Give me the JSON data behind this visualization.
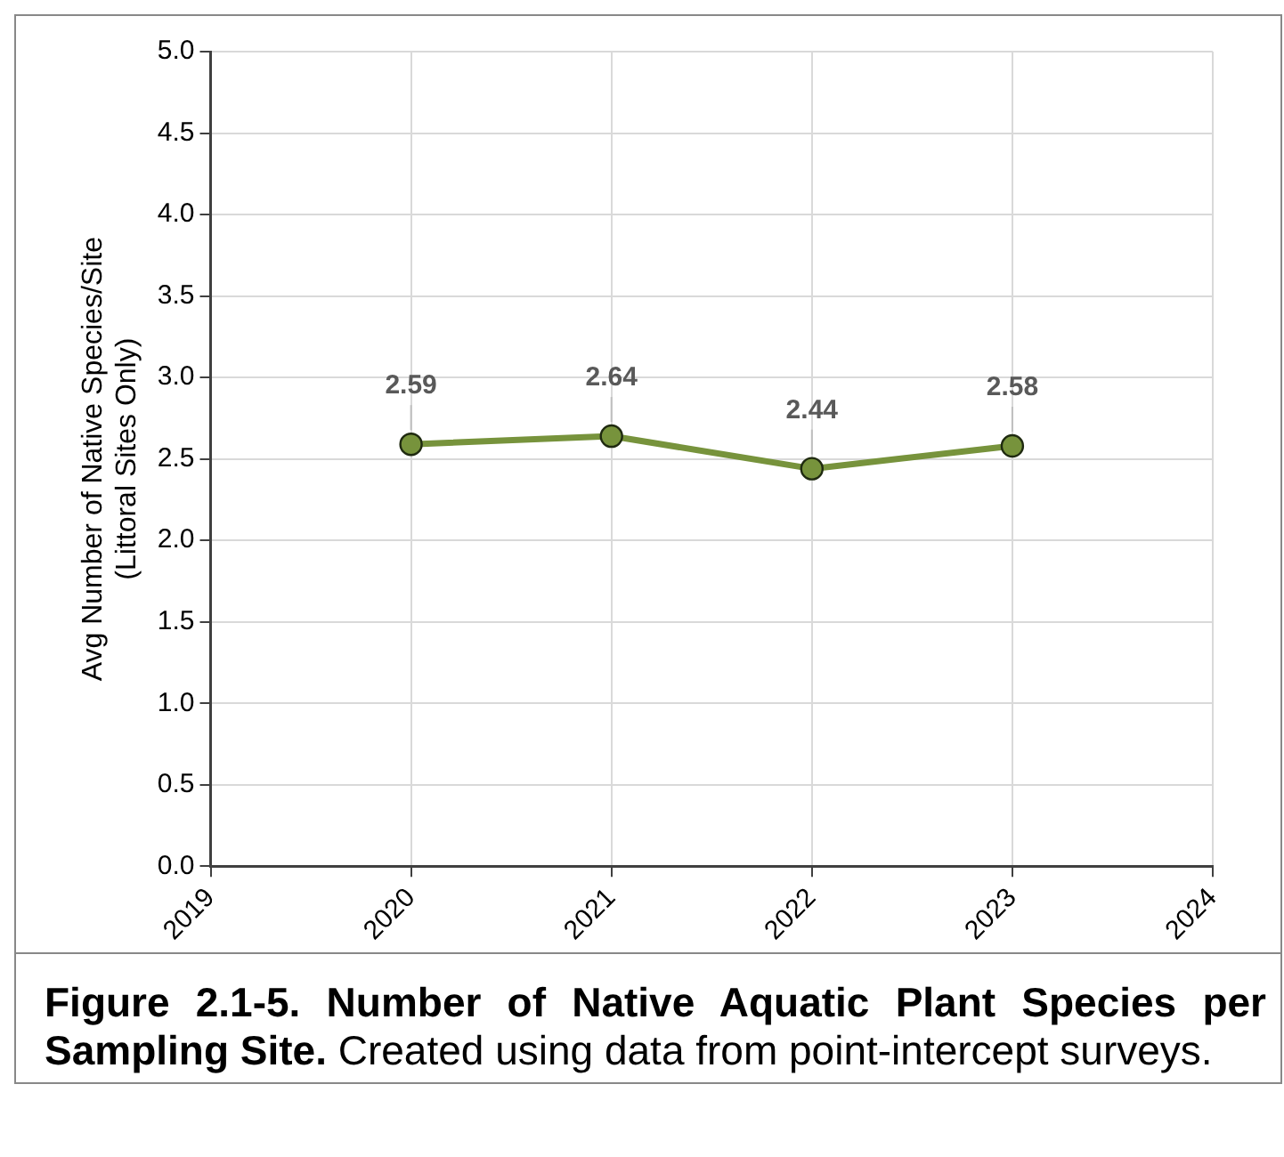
{
  "chart_data": {
    "type": "line",
    "title": "Figure 2.1-5.  Number of Native Aquatic Plant Species per Sampling Site.",
    "annotations": [
      "Created using data from point-intercept surveys."
    ],
    "ylabel": "Avg Number of Native Species/Site\n(Littoral Sites Only)",
    "x": [
      2020,
      2021,
      2022,
      2023
    ],
    "series": [
      {
        "color": "#77933c",
        "values": [
          2.59,
          2.64,
          2.44,
          2.58
        ]
      }
    ],
    "xlim": [
      2019,
      2024
    ],
    "xticks": [
      2019,
      2020,
      2021,
      2022,
      2023,
      2024
    ],
    "ylim": [
      0,
      5
    ],
    "yticks": [
      {
        "value": 0,
        "label": "0.0"
      },
      {
        "value": 0.5,
        "label": "0.5"
      },
      {
        "value": 1,
        "label": "1.0"
      },
      {
        "value": 1.5,
        "label": "1.5"
      },
      {
        "value": 2,
        "label": "2.0"
      },
      {
        "value": 2.5,
        "label": "2.5"
      },
      {
        "value": 3,
        "label": "3.0"
      },
      {
        "value": 3.5,
        "label": "3.5"
      },
      {
        "value": 4,
        "label": "4.0"
      },
      {
        "value": 4.5,
        "label": "4.5"
      },
      {
        "value": 5,
        "label": "5.0"
      }
    ],
    "grid": true,
    "marker": "circle",
    "line_style": "solid",
    "data_labels": true,
    "legend": false
  }
}
